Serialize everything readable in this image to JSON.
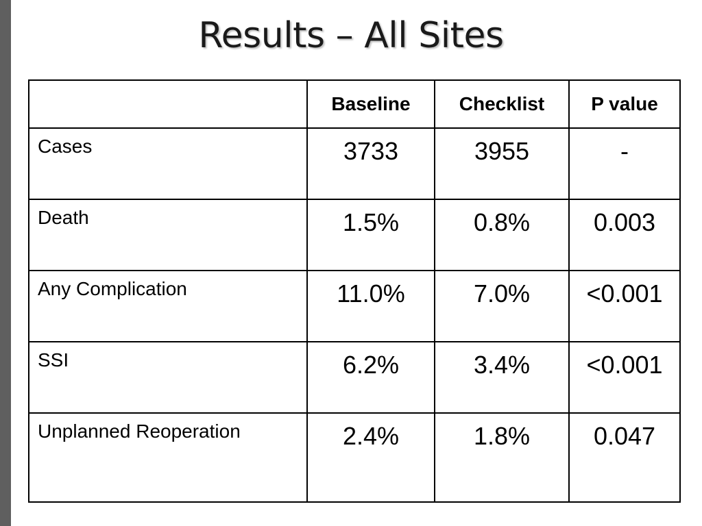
{
  "slide": {
    "title": "Results – All Sites"
  },
  "table": {
    "headers": [
      "",
      "Baseline",
      "Checklist",
      "P value"
    ],
    "rows": [
      {
        "label": "Cases",
        "baseline": "3733",
        "checklist": "3955",
        "p_value": "-"
      },
      {
        "label": "Death",
        "baseline": "1.5%",
        "checklist": "0.8%",
        "p_value": "0.003"
      },
      {
        "label": "Any Complication",
        "baseline": "11.0%",
        "checklist": "7.0%",
        "p_value": "<0.001"
      },
      {
        "label": "SSI",
        "baseline": "6.2%",
        "checklist": "3.4%",
        "p_value": "<0.001"
      },
      {
        "label": "Unplanned Reoperation",
        "baseline": "2.4%",
        "checklist": "1.8%",
        "p_value": "0.047"
      }
    ]
  }
}
